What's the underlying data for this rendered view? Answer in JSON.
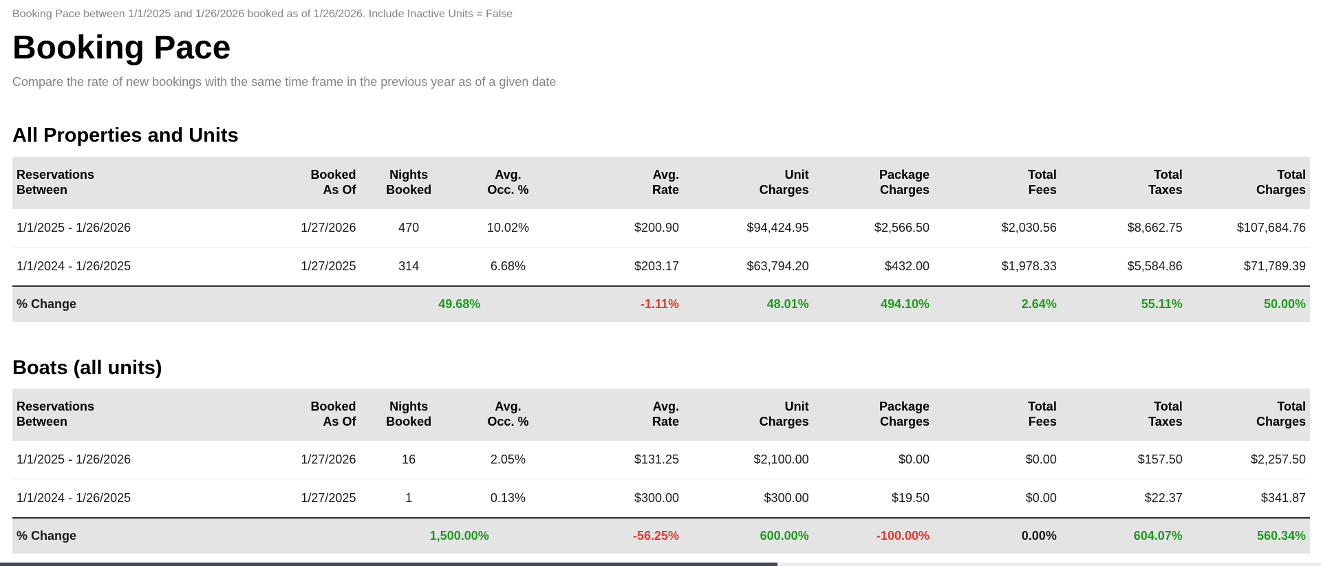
{
  "meta_line": "Booking Pace between 1/1/2025 and 1/26/2026 booked as of 1/26/2026. Include Inactive Units = False",
  "title": "Booking Pace",
  "subtitle": "Compare the rate of new bookings with the same time frame in the previous year as of a given date",
  "colors": {
    "positive_change": "#1e9b1e",
    "negative_change": "#df3a31",
    "neutral_change": "#1a1a1a",
    "header_band": "#e4e4e4",
    "muted_text": "#848484"
  },
  "columns": [
    {
      "label": "Reservations\nBetween"
    },
    {
      "label": "Booked\nAs Of"
    },
    {
      "label": "Nights\nBooked"
    },
    {
      "label": "Avg.\nOcc. %"
    },
    {
      "label": "Avg.\nRate"
    },
    {
      "label": "Unit\nCharges"
    },
    {
      "label": "Package\nCharges"
    },
    {
      "label": "Total\nFees"
    },
    {
      "label": "Total\nTaxes"
    },
    {
      "label": "Total\nCharges"
    }
  ],
  "sections": [
    {
      "heading": "All Properties and Units",
      "rows": [
        {
          "cells": [
            "1/1/2025 - 1/26/2026",
            "1/27/2026",
            "470",
            "10.02%",
            "$200.90",
            "$94,424.95",
            "$2,566.50",
            "$2,030.56",
            "$8,662.75",
            "$107,684.76"
          ]
        },
        {
          "cells": [
            "1/1/2024 - 1/26/2025",
            "1/27/2025",
            "314",
            "6.68%",
            "$203.17",
            "$63,794.20",
            "$432.00",
            "$1,978.33",
            "$5,584.86",
            "$71,789.39"
          ]
        }
      ],
      "change": {
        "label": "% Change",
        "values": [
          {
            "text": "49.68%",
            "trend": "up"
          },
          {
            "text": "-1.11%",
            "trend": "down"
          },
          {
            "text": "48.01%",
            "trend": "up"
          },
          {
            "text": "494.10%",
            "trend": "up"
          },
          {
            "text": "2.64%",
            "trend": "up"
          },
          {
            "text": "55.11%",
            "trend": "up"
          },
          {
            "text": "50.00%",
            "trend": "up"
          }
        ]
      }
    },
    {
      "heading": "Boats (all units)",
      "rows": [
        {
          "cells": [
            "1/1/2025 - 1/26/2026",
            "1/27/2026",
            "16",
            "2.05%",
            "$131.25",
            "$2,100.00",
            "$0.00",
            "$0.00",
            "$157.50",
            "$2,257.50"
          ]
        },
        {
          "cells": [
            "1/1/2024 - 1/26/2025",
            "1/27/2025",
            "1",
            "0.13%",
            "$300.00",
            "$300.00",
            "$19.50",
            "$0.00",
            "$22.37",
            "$341.87"
          ]
        }
      ],
      "change": {
        "label": "% Change",
        "values": [
          {
            "text": "1,500.00%",
            "trend": "up"
          },
          {
            "text": "-56.25%",
            "trend": "down"
          },
          {
            "text": "600.00%",
            "trend": "up"
          },
          {
            "text": "-100.00%",
            "trend": "down"
          },
          {
            "text": "0.00%",
            "trend": "flat"
          },
          {
            "text": "604.07%",
            "trend": "up"
          },
          {
            "text": "560.34%",
            "trend": "up"
          }
        ]
      }
    }
  ]
}
